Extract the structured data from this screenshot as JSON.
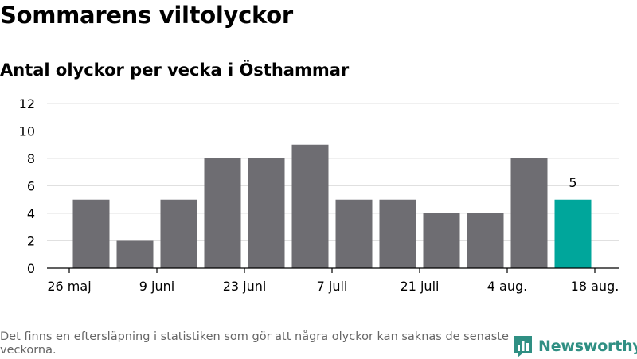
{
  "header": {
    "title": "Sommarens viltolyckor",
    "subtitle": "Antal olyckor per vecka i Östhammar"
  },
  "footer": {
    "note": "Det finns en eftersläpning i statistiken som gör att några olyckor kan saknas de senaste veckorna.",
    "brand": "Newsworthy"
  },
  "colors": {
    "bar": "#6e6d72",
    "highlight": "#00a69b",
    "grid": "#e0e0e0",
    "brand": "#2f8f83"
  },
  "chart_data": {
    "type": "bar",
    "values": [
      5,
      2,
      5,
      8,
      8,
      9,
      5,
      5,
      4,
      4,
      8,
      5
    ],
    "highlight_index": 11,
    "highlight_label": "5",
    "x_tick_labels": [
      "26 maj",
      "9 juni",
      "23 juni",
      "7 juli",
      "21 juli",
      "4 aug.",
      "18 aug."
    ],
    "x_tick_positions": [
      -0.5,
      1.5,
      3.5,
      5.5,
      7.5,
      9.5,
      11.5
    ],
    "y_ticks": [
      0,
      2,
      4,
      6,
      8,
      10,
      12
    ],
    "ylim": [
      0,
      12
    ],
    "grid": true,
    "xlabel": "",
    "ylabel": ""
  }
}
